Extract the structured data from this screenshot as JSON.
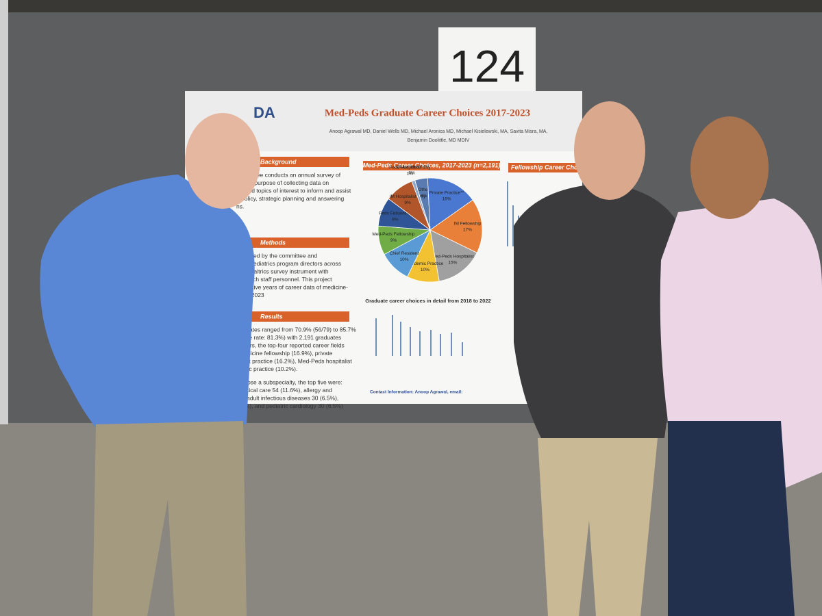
{
  "sign": "124",
  "poster": {
    "logo": "DA",
    "title": "Med-Peds Graduate Career Choices 2017-2023",
    "authors": [
      "Anoop Agrawal MD, Daniel Wells MD, Michael Aronica MD, Michael Kisielewski, MA, Savita Misra, MA,",
      "Benjamin Doolittle, MD MDIV"
    ],
    "sections": [
      {
        "heading": "Background",
        "lines": [
          "committee conducts an annual survey of",
          "for the purpose of collecting data on",
          "ics and topics of interest to inform and assist",
          "h policy, strategic planning and answering",
          "ns."
        ]
      },
      {
        "heading": "Methods",
        "lines": [
          "designed by the committee and",
          "icine-pediatrics program directors across",
          "the Qualtrics survey instrument with",
          "research staff personnel.  This project",
          "umulative years of career data of medicine-",
          "2017-2023"
        ]
      },
      {
        "heading": "Results",
        "lines": [
          "nse rates ranged from 70.9% (56/79) to 85.7%",
          "ponse rate: 81.3%) with 2,191 graduates",
          "ll years, the top-four reported career fields",
          "l medicine fellowship (16.9%), private",
          "atient practice (16.2%), Med-Peds hospitalist",
          "demic practice (10.2%).",
          "o chose a subspecialty, the top five were:",
          "d critical care 54 (11.6%), allergy and",
          "%), adult infectious diseases 30 (6.5%),",
          "6.5%), and pediatric cardiology 30 (6.5%)"
        ]
      }
    ],
    "pie": {
      "type": "pie",
      "title": "Med-Peds Career Choices, 2017-2023 (n=2,191)",
      "categories": [
        "Other",
        "Private Practice**",
        "IM Fellowship",
        "Med-Peds Hospitalist",
        "Academic Practice",
        "Chief Resident",
        "Med-Peds Fellowship",
        "Peds Fellowship",
        "IM Hospitalist only",
        "Peds Hospitalist only",
        "Global Health**"
      ],
      "values": [
        4,
        16,
        17,
        15,
        10,
        10,
        9,
        9,
        9,
        1,
        0
      ],
      "value_labels": [
        "4%",
        "16%",
        "17%",
        "15%",
        "10%",
        "10%",
        "9%",
        "9%",
        "9%",
        "1%",
        "0%"
      ],
      "colors": [
        "#5a7bb0",
        "#4a78d0",
        "#e8803a",
        "#a0a0a0",
        "#f2c232",
        "#5b9bd5",
        "#70ad47",
        "#2f5597",
        "#b0562a",
        "#8fa8c8",
        "#c9a227"
      ]
    },
    "bar_title": "Graduate career choices in detail from 2018 to 2022",
    "fellowship_title": "Fellowship Career Choic",
    "contact": "Contact Information:  Anoop Agrawal, email:"
  }
}
